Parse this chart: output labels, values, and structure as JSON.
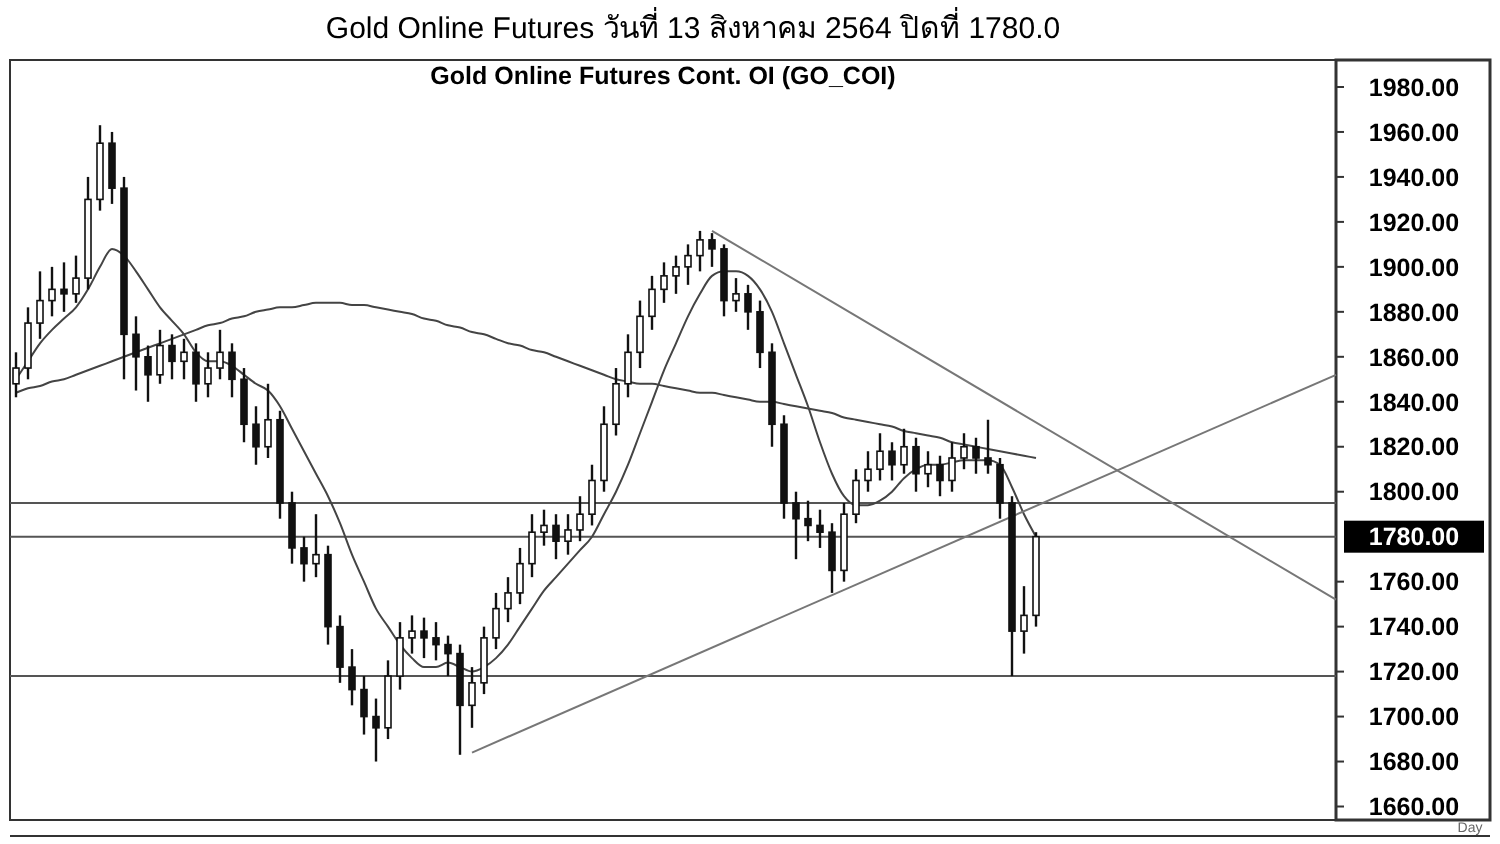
{
  "chart_data": {
    "type": "candlestick",
    "title": "Gold Online Futures วันที่   13 สิงหาคม   2564 ปิดที่   1780.0",
    "subtitle": "Gold  Online  Futures  Cont.  OI  (GO_COI)",
    "xlabel": "Day",
    "categories": [
      null,
      null,
      null,
      null,
      null,
      null,
      null,
      null,
      null,
      null,
      null,
      null,
      null,
      null,
      null,
      null,
      null,
      null,
      null,
      null,
      null,
      null,
      null,
      null,
      null,
      null,
      null,
      null,
      null,
      null,
      null,
      null,
      null,
      null,
      null,
      null,
      null,
      null,
      null,
      null,
      null,
      null,
      null,
      null,
      null,
      null,
      null,
      null,
      null,
      null,
      null,
      null,
      null,
      null,
      null,
      null,
      null,
      null,
      null,
      null,
      null,
      null,
      null,
      null,
      null,
      null,
      null,
      null,
      null,
      null,
      null,
      null,
      null,
      null,
      null,
      null,
      null,
      null,
      null,
      null,
      null,
      null,
      null,
      null,
      null,
      null,
      null,
      null,
      null,
      null,
      null,
      null,
      null,
      null,
      null,
      null,
      null,
      null,
      null,
      null,
      null,
      null,
      null,
      null,
      null,
      null,
      null,
      null,
      null,
      null,
      null
    ],
    "color": "#111111",
    "ohlc": [
      [
        1848,
        1862,
        1842,
        1855
      ],
      [
        1855,
        1882,
        1850,
        1875
      ],
      [
        1875,
        1898,
        1868,
        1885
      ],
      [
        1885,
        1900,
        1878,
        1890
      ],
      [
        1890,
        1902,
        1880,
        1888
      ],
      [
        1888,
        1905,
        1884,
        1895
      ],
      [
        1895,
        1940,
        1890,
        1930
      ],
      [
        1930,
        1963,
        1925,
        1955
      ],
      [
        1955,
        1960,
        1928,
        1935
      ],
      [
        1935,
        1940,
        1850,
        1870
      ],
      [
        1870,
        1878,
        1845,
        1860
      ],
      [
        1860,
        1865,
        1840,
        1852
      ],
      [
        1852,
        1872,
        1848,
        1865
      ],
      [
        1865,
        1870,
        1850,
        1858
      ],
      [
        1858,
        1868,
        1850,
        1862
      ],
      [
        1862,
        1866,
        1840,
        1848
      ],
      [
        1848,
        1862,
        1842,
        1855
      ],
      [
        1855,
        1872,
        1850,
        1862
      ],
      [
        1862,
        1866,
        1842,
        1850
      ],
      [
        1850,
        1855,
        1822,
        1830
      ],
      [
        1830,
        1838,
        1812,
        1820
      ],
      [
        1820,
        1848,
        1815,
        1832
      ],
      [
        1832,
        1836,
        1788,
        1795
      ],
      [
        1795,
        1800,
        1768,
        1775
      ],
      [
        1775,
        1780,
        1760,
        1768
      ],
      [
        1768,
        1790,
        1762,
        1772
      ],
      [
        1772,
        1776,
        1732,
        1740
      ],
      [
        1740,
        1745,
        1715,
        1722
      ],
      [
        1722,
        1730,
        1705,
        1712
      ],
      [
        1712,
        1718,
        1692,
        1700
      ],
      [
        1700,
        1708,
        1680,
        1695
      ],
      [
        1695,
        1725,
        1690,
        1718
      ],
      [
        1718,
        1742,
        1712,
        1735
      ],
      [
        1735,
        1745,
        1728,
        1738
      ],
      [
        1738,
        1744,
        1726,
        1735
      ],
      [
        1735,
        1742,
        1725,
        1732
      ],
      [
        1732,
        1736,
        1718,
        1728
      ],
      [
        1728,
        1732,
        1683,
        1705
      ],
      [
        1705,
        1722,
        1695,
        1715
      ],
      [
        1715,
        1740,
        1710,
        1735
      ],
      [
        1735,
        1755,
        1730,
        1748
      ],
      [
        1748,
        1762,
        1742,
        1755
      ],
      [
        1755,
        1775,
        1750,
        1768
      ],
      [
        1768,
        1790,
        1762,
        1782
      ],
      [
        1782,
        1792,
        1776,
        1785
      ],
      [
        1785,
        1790,
        1770,
        1778
      ],
      [
        1778,
        1790,
        1772,
        1783
      ],
      [
        1783,
        1798,
        1778,
        1790
      ],
      [
        1790,
        1812,
        1785,
        1805
      ],
      [
        1805,
        1838,
        1800,
        1830
      ],
      [
        1830,
        1855,
        1825,
        1848
      ],
      [
        1848,
        1870,
        1842,
        1862
      ],
      [
        1862,
        1885,
        1855,
        1878
      ],
      [
        1878,
        1896,
        1872,
        1890
      ],
      [
        1890,
        1902,
        1884,
        1896
      ],
      [
        1896,
        1905,
        1888,
        1900
      ],
      [
        1900,
        1910,
        1892,
        1905
      ],
      [
        1905,
        1916,
        1898,
        1912
      ],
      [
        1912,
        1915,
        1900,
        1908
      ],
      [
        1908,
        1910,
        1878,
        1885
      ],
      [
        1885,
        1895,
        1880,
        1888
      ],
      [
        1888,
        1892,
        1872,
        1880
      ],
      [
        1880,
        1885,
        1855,
        1862
      ],
      [
        1862,
        1866,
        1820,
        1830
      ],
      [
        1830,
        1834,
        1788,
        1795
      ],
      [
        1795,
        1800,
        1770,
        1788
      ],
      [
        1788,
        1796,
        1778,
        1785
      ],
      [
        1785,
        1792,
        1775,
        1782
      ],
      [
        1782,
        1786,
        1755,
        1765
      ],
      [
        1765,
        1795,
        1760,
        1790
      ],
      [
        1790,
        1810,
        1786,
        1805
      ],
      [
        1805,
        1818,
        1800,
        1810
      ],
      [
        1810,
        1826,
        1805,
        1818
      ],
      [
        1818,
        1822,
        1805,
        1812
      ],
      [
        1812,
        1828,
        1808,
        1820
      ],
      [
        1820,
        1824,
        1800,
        1808
      ],
      [
        1808,
        1818,
        1802,
        1812
      ],
      [
        1812,
        1816,
        1798,
        1805
      ],
      [
        1805,
        1822,
        1800,
        1815
      ],
      [
        1815,
        1826,
        1810,
        1820
      ],
      [
        1820,
        1824,
        1808,
        1815
      ],
      [
        1815,
        1832,
        1808,
        1812
      ],
      [
        1812,
        1815,
        1788,
        1795
      ],
      [
        1795,
        1798,
        1718,
        1738
      ],
      [
        1738,
        1758,
        1728,
        1745
      ],
      [
        1745,
        1782,
        1740,
        1780
      ],
      null,
      null,
      null,
      null,
      null,
      null,
      null,
      null,
      null,
      null,
      null,
      null,
      null,
      null,
      null,
      null,
      null,
      null,
      null,
      null,
      null,
      null,
      null,
      null,
      null
    ],
    "series": [
      {
        "type": "line",
        "color": "#444444",
        "values": [
          1844,
          1846,
          1847,
          1849,
          1850,
          1852,
          1854,
          1856,
          1858,
          1860,
          1862,
          1864,
          1866,
          1868,
          1870,
          1872,
          1874,
          1875,
          1877,
          1878,
          1880,
          1881,
          1882,
          1882,
          1883,
          1884,
          1884,
          1884,
          1883,
          1883,
          1882,
          1881,
          1880,
          1879,
          1877,
          1876,
          1874,
          1873,
          1871,
          1870,
          1868,
          1866,
          1865,
          1863,
          1862,
          1860,
          1858,
          1856,
          1854,
          1852,
          1850,
          1849,
          1848,
          1848,
          1847,
          1846,
          1845,
          1844,
          1844,
          1843,
          1842,
          1841,
          1840,
          1840,
          1839,
          1838,
          1837,
          1836,
          1835,
          1833,
          1832,
          1831,
          1830,
          1829,
          1827,
          1826,
          1825,
          1824,
          1822,
          1821,
          1820,
          1819,
          1818,
          1817,
          1816,
          1815,
          null,
          null,
          null,
          null,
          null,
          null,
          null,
          null,
          null,
          null,
          null,
          null,
          null,
          null,
          null,
          null,
          null,
          null,
          null,
          null,
          null,
          null,
          null,
          null,
          null
        ]
      },
      {
        "type": "line",
        "color": "#444444",
        "values": [
          1850,
          1858,
          1866,
          1872,
          1877,
          1882,
          1890,
          1900,
          1908,
          1905,
          1898,
          1890,
          1882,
          1876,
          1870,
          1862,
          1858,
          1858,
          1856,
          1852,
          1848,
          1845,
          1838,
          1828,
          1818,
          1808,
          1798,
          1786,
          1772,
          1760,
          1748,
          1740,
          1732,
          1726,
          1722,
          1722,
          1724,
          1722,
          1720,
          1722,
          1726,
          1732,
          1740,
          1748,
          1756,
          1762,
          1768,
          1774,
          1780,
          1790,
          1800,
          1812,
          1826,
          1840,
          1854,
          1866,
          1878,
          1888,
          1896,
          1898,
          1898,
          1896,
          1890,
          1880,
          1866,
          1852,
          1838,
          1822,
          1808,
          1798,
          1794,
          1794,
          1796,
          1800,
          1806,
          1810,
          1812,
          1812,
          1813,
          1814,
          1814,
          1814,
          1812,
          1802,
          1790,
          1780,
          null,
          null,
          null,
          null,
          null,
          null,
          null,
          null,
          null,
          null,
          null,
          null,
          null,
          null,
          null,
          null,
          null,
          null,
          null,
          null,
          null,
          null,
          null,
          null,
          null
        ]
      },
      {
        "type": "line",
        "color": "#777777",
        "values": [
          null,
          null,
          null,
          null,
          null,
          null,
          null,
          null,
          null,
          null,
          null,
          null,
          null,
          null,
          null,
          null,
          null,
          null,
          null,
          null,
          null,
          null,
          null,
          null,
          null,
          null,
          null,
          null,
          null,
          null,
          null,
          null,
          null,
          null,
          null,
          null,
          null,
          null,
          null,
          null,
          null,
          null,
          null,
          null,
          null,
          null,
          null,
          null,
          null,
          null,
          null,
          null,
          null,
          null,
          null,
          null,
          null,
          null,
          1916,
          null,
          null,
          null,
          null,
          null,
          null,
          null,
          null,
          null,
          null,
          null,
          null,
          null,
          null,
          null,
          null,
          null,
          null,
          null,
          null,
          null,
          null,
          null,
          null,
          null,
          null,
          null,
          null,
          null,
          null,
          null,
          null,
          null,
          null,
          null,
          null,
          null,
          null,
          null,
          null,
          null,
          null,
          null,
          null,
          null,
          null,
          null,
          null,
          null,
          null,
          null,
          1752
        ]
      },
      {
        "type": "line",
        "color": "#777777",
        "values": [
          null,
          null,
          null,
          null,
          null,
          null,
          null,
          null,
          null,
          null,
          null,
          null,
          null,
          null,
          null,
          null,
          null,
          null,
          null,
          null,
          null,
          null,
          null,
          null,
          null,
          null,
          null,
          null,
          null,
          null,
          null,
          null,
          null,
          null,
          null,
          null,
          null,
          null,
          1684,
          null,
          null,
          null,
          null,
          null,
          null,
          null,
          null,
          null,
          null,
          null,
          null,
          null,
          null,
          null,
          null,
          null,
          null,
          null,
          null,
          null,
          null,
          null,
          null,
          null,
          null,
          null,
          null,
          null,
          null,
          null,
          null,
          null,
          null,
          null,
          null,
          null,
          null,
          null,
          null,
          null,
          null,
          null,
          null,
          null,
          null,
          null,
          null,
          null,
          null,
          null,
          null,
          null,
          null,
          null,
          null,
          null,
          null,
          null,
          null,
          null,
          null,
          null,
          null,
          null,
          null,
          null,
          null,
          null,
          null,
          null,
          1852
        ]
      }
    ],
    "ylim": [
      1654,
      1992
    ],
    "yticks": [
      {
        "value": 1660,
        "label": "1660.00"
      },
      {
        "value": 1680,
        "label": "1680.00"
      },
      {
        "value": 1700,
        "label": "1700.00"
      },
      {
        "value": 1720,
        "label": "1720.00"
      },
      {
        "value": 1740,
        "label": "1740.00"
      },
      {
        "value": 1760,
        "label": "1760.00"
      },
      {
        "value": 1800,
        "label": "1800.00"
      },
      {
        "value": 1820,
        "label": "1820.00"
      },
      {
        "value": 1840,
        "label": "1840.00"
      },
      {
        "value": 1860,
        "label": "1860.00"
      },
      {
        "value": 1880,
        "label": "1880.00"
      },
      {
        "value": 1900,
        "label": "1900.00"
      },
      {
        "value": 1920,
        "label": "1920.00"
      },
      {
        "value": 1940,
        "label": "1940.00"
      },
      {
        "value": 1960,
        "label": "1960.00"
      },
      {
        "value": 1980,
        "label": "1980.00"
      }
    ],
    "ref_lines": [
      {
        "axis": "y",
        "value": 1795,
        "color": "#555555"
      },
      {
        "axis": "y",
        "value": 1780,
        "label": "1780.00",
        "color": "#555555"
      },
      {
        "axis": "y",
        "value": 1718,
        "color": "#555555"
      }
    ],
    "tick_labels": "y",
    "grid": false
  }
}
